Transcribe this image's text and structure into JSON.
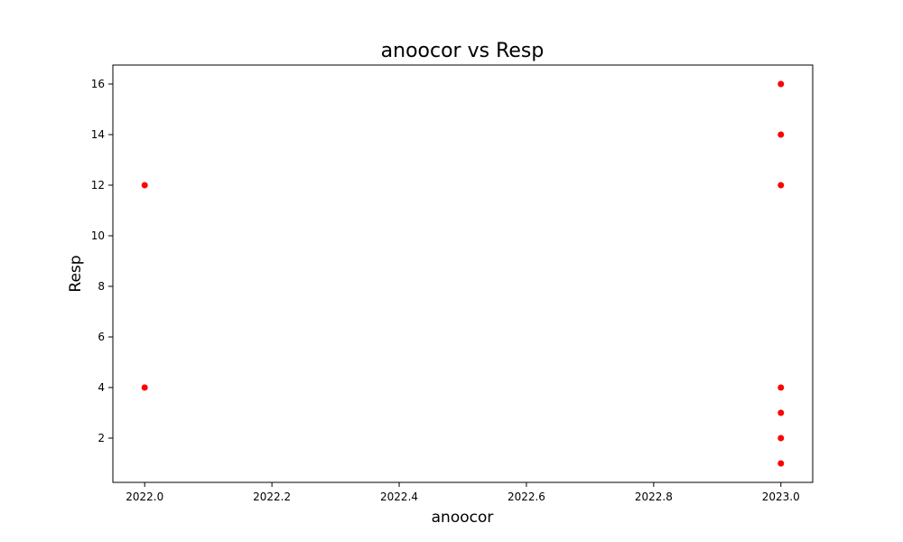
{
  "chart_data": {
    "type": "scatter",
    "title": "anoocor vs Resp",
    "xlabel": "anoocor",
    "ylabel": "Resp",
    "xlim": [
      2021.95,
      2023.05
    ],
    "ylim": [
      0.25,
      16.75
    ],
    "xticks": [
      2022.0,
      2022.2,
      2022.4,
      2022.6,
      2022.8,
      2023.0
    ],
    "xtick_labels": [
      "2022.0",
      "2022.2",
      "2022.4",
      "2022.6",
      "2022.8",
      "2023.0"
    ],
    "yticks": [
      2,
      4,
      6,
      8,
      10,
      12,
      14,
      16
    ],
    "ytick_labels": [
      "2",
      "4",
      "6",
      "8",
      "10",
      "12",
      "14",
      "16"
    ],
    "grid": false,
    "point_color": "#ff0000",
    "series": [
      {
        "x": [
          2022.0,
          2022.0,
          2023.0,
          2023.0,
          2023.0,
          2023.0,
          2023.0,
          2023.0,
          2023.0
        ],
        "y": [
          12,
          4,
          16,
          14,
          12,
          4,
          3,
          2,
          1
        ]
      }
    ]
  }
}
